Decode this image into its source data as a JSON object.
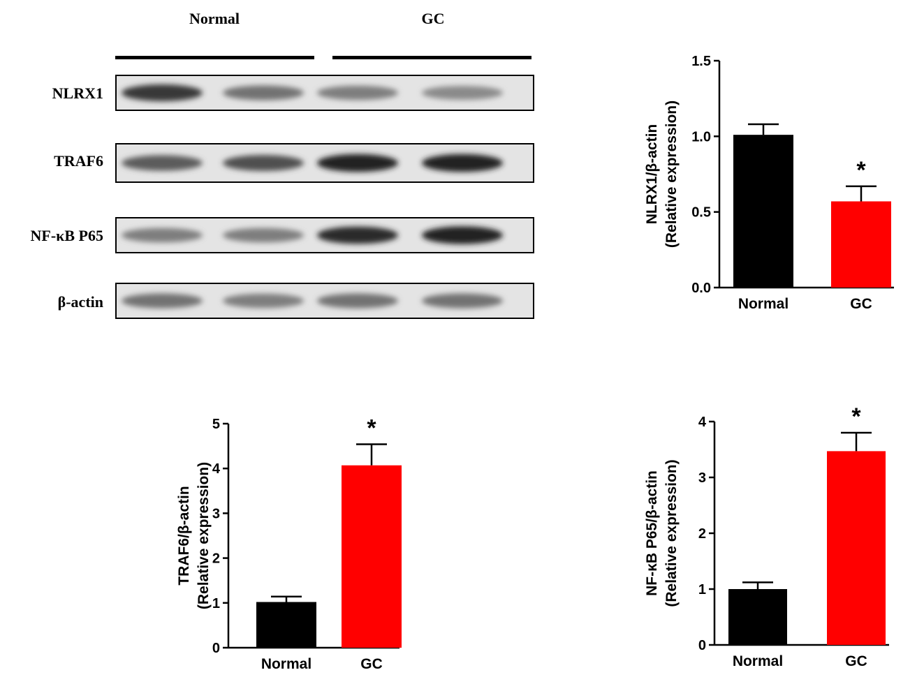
{
  "blot": {
    "groups": [
      "Normal",
      "GC"
    ],
    "rows": [
      {
        "label": "NLRX1",
        "bands": [
          0.85,
          0.6,
          0.55,
          0.5
        ]
      },
      {
        "label": "TRAF6",
        "bands": [
          0.7,
          0.75,
          0.95,
          0.95
        ]
      },
      {
        "label": "NF-κB P65",
        "bands": [
          0.55,
          0.55,
          0.9,
          0.95
        ]
      },
      {
        "label": "β-actin",
        "bands": [
          0.6,
          0.55,
          0.6,
          0.6
        ]
      }
    ]
  },
  "chart_data": [
    {
      "type": "bar",
      "categories": [
        "Normal",
        "GC"
      ],
      "values": [
        1.01,
        0.57
      ],
      "errors": [
        0.07,
        0.1
      ],
      "colors": [
        "#000000",
        "#ff0000"
      ],
      "significance": [
        "",
        "*"
      ],
      "ylabel": "NLRX1/β-actin",
      "ylabel2": "(Relative expression)",
      "ylim": [
        0,
        1.5
      ],
      "yticks": [
        "0.0",
        "0.5",
        "1.0",
        "1.5"
      ]
    },
    {
      "type": "bar",
      "categories": [
        "Normal",
        "GC"
      ],
      "values": [
        1.02,
        4.07
      ],
      "errors": [
        0.12,
        0.47
      ],
      "colors": [
        "#000000",
        "#ff0000"
      ],
      "significance": [
        "",
        "*"
      ],
      "ylabel": "TRAF6/β-actin",
      "ylabel2": "(Relative expression)",
      "ylim": [
        0,
        5
      ],
      "yticks": [
        "0",
        "1",
        "2",
        "3",
        "4",
        "5"
      ]
    },
    {
      "type": "bar",
      "categories": [
        "Normal",
        "GC"
      ],
      "values": [
        1.0,
        3.47
      ],
      "errors": [
        0.12,
        0.33
      ],
      "colors": [
        "#000000",
        "#ff0000"
      ],
      "significance": [
        "",
        "*"
      ],
      "ylabel": "NF-κB  P65/β-actin",
      "ylabel2": "(Relative expression)",
      "ylim": [
        0,
        4
      ],
      "yticks": [
        "0",
        "1",
        "2",
        "3",
        "4"
      ]
    }
  ]
}
